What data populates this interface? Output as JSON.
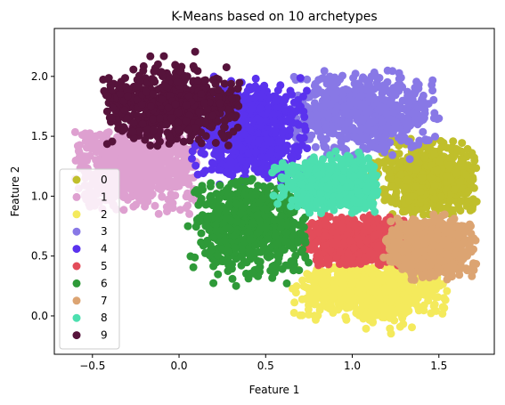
{
  "chart_data": {
    "type": "scatter",
    "title": "K-Means based on 10 archetypes",
    "xlabel": "Feature 1",
    "ylabel": "Feature 2",
    "xlim": [
      -0.72,
      1.82
    ],
    "ylim": [
      -0.32,
      2.4
    ],
    "xticks": [
      -0.5,
      0.0,
      0.5,
      1.0,
      1.5
    ],
    "xtick_labels": [
      "−0.5",
      "0.0",
      "0.5",
      "1.0",
      "1.5"
    ],
    "yticks": [
      0.0,
      0.5,
      1.0,
      1.5,
      2.0
    ],
    "ytick_labels": [
      "0.0",
      "0.5",
      "1.0",
      "1.5",
      "2.0"
    ],
    "grid": false,
    "legend_position": "lower-left",
    "series": [
      {
        "name": "0",
        "color": "#c0bf2b",
        "cluster": {
          "center": [
            1.45,
            1.15
          ],
          "spread": [
            0.14,
            0.17
          ],
          "x_range": [
            1.1,
            1.72
          ],
          "y_range": [
            0.84,
            1.48
          ]
        }
      },
      {
        "name": "1",
        "color": "#dea0d0",
        "cluster": {
          "center": [
            -0.25,
            1.25
          ],
          "spread": [
            0.18,
            0.18
          ],
          "x_range": [
            -0.6,
            0.1
          ],
          "y_range": [
            0.85,
            1.6
          ]
        }
      },
      {
        "name": "2",
        "color": "#f4ea5c",
        "cluster": {
          "center": [
            1.1,
            0.22
          ],
          "spread": [
            0.22,
            0.12
          ],
          "x_range": [
            0.65,
            1.55
          ],
          "y_range": [
            -0.15,
            0.42
          ]
        }
      },
      {
        "name": "3",
        "color": "#8878e6",
        "cluster": {
          "center": [
            1.05,
            1.7
          ],
          "spread": [
            0.22,
            0.16
          ],
          "x_range": [
            0.65,
            1.5
          ],
          "y_range": [
            1.3,
            2.05
          ]
        }
      },
      {
        "name": "4",
        "color": "#5a32ee",
        "cluster": {
          "center": [
            0.4,
            1.55
          ],
          "spread": [
            0.15,
            0.2
          ],
          "x_range": [
            0.05,
            0.75
          ],
          "y_range": [
            1.05,
            2.0
          ]
        }
      },
      {
        "name": "5",
        "color": "#e34c5a",
        "cluster": {
          "center": [
            1.05,
            0.62
          ],
          "spread": [
            0.14,
            0.1
          ],
          "x_range": [
            0.72,
            1.35
          ],
          "y_range": [
            0.42,
            0.85
          ]
        }
      },
      {
        "name": "6",
        "color": "#2e9a38",
        "cluster": {
          "center": [
            0.42,
            0.75
          ],
          "spread": [
            0.16,
            0.2
          ],
          "x_range": [
            0.05,
            0.75
          ],
          "y_range": [
            0.25,
            1.15
          ]
        }
      },
      {
        "name": "7",
        "color": "#dca472",
        "cluster": {
          "center": [
            1.45,
            0.58
          ],
          "spread": [
            0.12,
            0.12
          ],
          "x_range": [
            1.18,
            1.72
          ],
          "y_range": [
            0.3,
            0.85
          ]
        }
      },
      {
        "name": "8",
        "color": "#4cdfaf",
        "cluster": {
          "center": [
            0.88,
            1.08
          ],
          "spread": [
            0.15,
            0.1
          ],
          "x_range": [
            0.52,
            1.15
          ],
          "y_range": [
            0.85,
            1.38
          ]
        }
      },
      {
        "name": "9",
        "color": "#56133b",
        "cluster": {
          "center": [
            -0.05,
            1.75
          ],
          "spread": [
            0.2,
            0.14
          ],
          "x_range": [
            -0.45,
            0.35
          ],
          "y_range": [
            1.42,
            2.25
          ]
        }
      }
    ]
  }
}
